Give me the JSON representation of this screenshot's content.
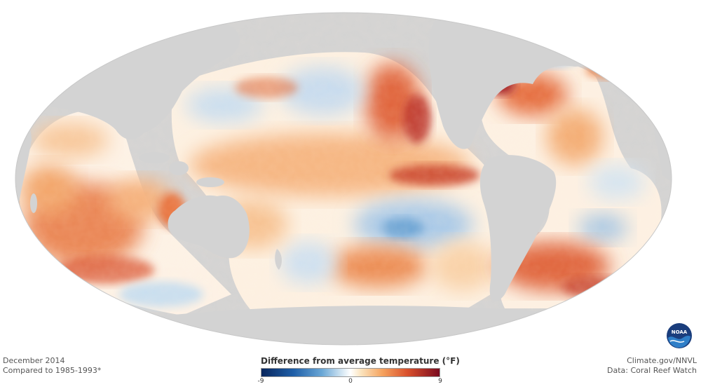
{
  "caption": {
    "date": "December 2014",
    "baseline": "Compared to 1985-1993*"
  },
  "credits": {
    "site": "Climate.gov/NNVL",
    "source": "Data: Coral Reef Watch"
  },
  "legend": {
    "title": "Difference from average temperature (°F)",
    "min_label": "-9",
    "mid_label": "0",
    "max_label": "9",
    "min": -9,
    "max": 9
  },
  "logo": {
    "text": "NOAA",
    "icon": "noaa-logo-icon"
  },
  "colors": {
    "land": "#d3d3d3",
    "neutral": "#ffffff",
    "cold": "#1f5fa8",
    "warm": "#d9502c",
    "hot": "#7a0a1f"
  },
  "map_data": {
    "projection": "mollweide",
    "variable": "sea surface temperature anomaly",
    "units": "°F"
  }
}
